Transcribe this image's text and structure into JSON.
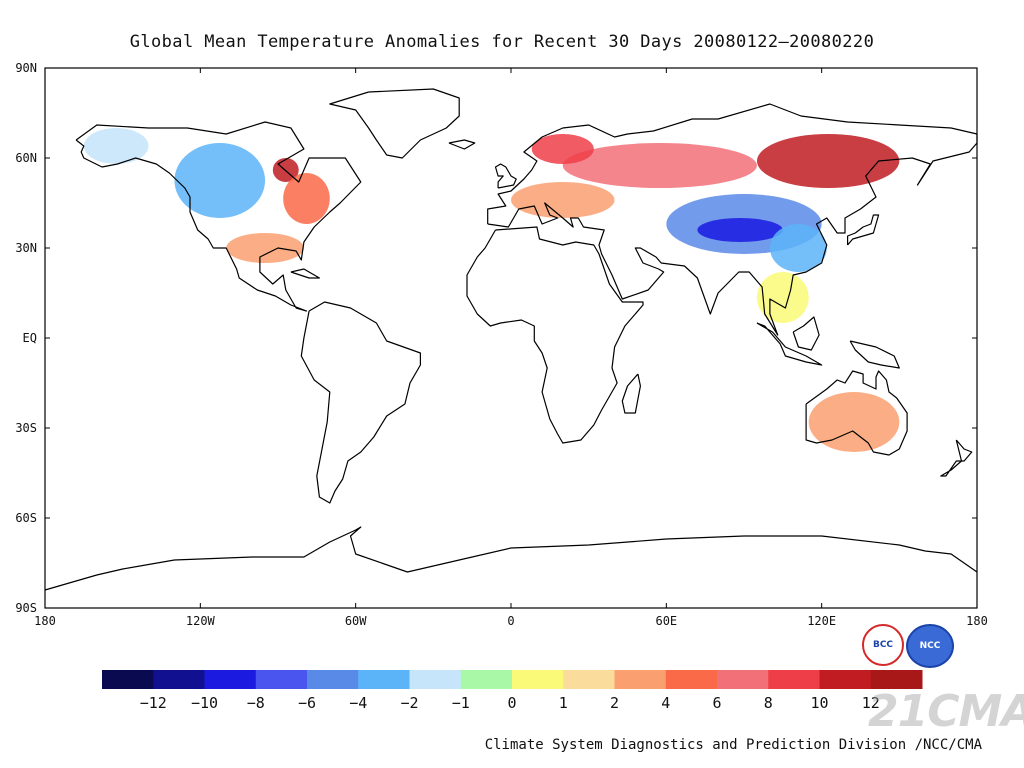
{
  "title": "Global Mean Temperature Anomalies for Recent 30 Days  20080122–20080220",
  "credit": "Climate System Diagnostics and Prediction Division /NCC/CMA",
  "watermark": "21CMA",
  "logos": {
    "bcc": "BCC",
    "ncc": "NCC"
  },
  "map": {
    "lon_range": [
      -180,
      180
    ],
    "lat_range": [
      -90,
      90
    ],
    "lat_ticks": [
      {
        "value": 90,
        "label": "90N"
      },
      {
        "value": 60,
        "label": "60N"
      },
      {
        "value": 30,
        "label": "30N"
      },
      {
        "value": 0,
        "label": "EQ"
      },
      {
        "value": -30,
        "label": "30S"
      },
      {
        "value": -60,
        "label": "60S"
      },
      {
        "value": -90,
        "label": "90S"
      }
    ],
    "lon_ticks": [
      {
        "value": -180,
        "label": "180"
      },
      {
        "value": -120,
        "label": "120W"
      },
      {
        "value": -60,
        "label": "60W"
      },
      {
        "value": 0,
        "label": "0"
      },
      {
        "value": 60,
        "label": "60E"
      },
      {
        "value": 120,
        "label": "120E"
      },
      {
        "value": 180,
        "label": "180"
      }
    ]
  },
  "legend": {
    "colors": [
      "#0a0a50",
      "#101090",
      "#1a1ae0",
      "#4a55f0",
      "#5a8ae8",
      "#5cb4f8",
      "#c6e4fa",
      "#a8f8a8",
      "#fafa78",
      "#fadc9c",
      "#faa070",
      "#fa6a48",
      "#f27078",
      "#ee3e48",
      "#c01c22",
      "#a81818"
    ],
    "labels": [
      "-12",
      "-10",
      "-8",
      "-6",
      "-4",
      "-2",
      "-1",
      "0",
      "1",
      "2",
      "4",
      "6",
      "8",
      "10",
      "12"
    ]
  },
  "anomaly_regions": [
    {
      "name": "siberia-warm",
      "value": 10,
      "lon": [
        95,
        150
      ],
      "lat": [
        50,
        68
      ]
    },
    {
      "name": "russia-warm",
      "value": 6,
      "lon": [
        20,
        95
      ],
      "lat": [
        50,
        65
      ]
    },
    {
      "name": "scandinavia-warm",
      "value": 8,
      "lon": [
        8,
        32
      ],
      "lat": [
        58,
        68
      ]
    },
    {
      "name": "europe-mild",
      "value": 2,
      "lon": [
        0,
        40
      ],
      "lat": [
        40,
        52
      ]
    },
    {
      "name": "central-asia-cold",
      "value": -6,
      "lon": [
        60,
        120
      ],
      "lat": [
        28,
        48
      ]
    },
    {
      "name": "tibet-cold",
      "value": -10,
      "lon": [
        72,
        105
      ],
      "lat": [
        32,
        40
      ]
    },
    {
      "name": "east-china-cold",
      "value": -4,
      "lon": [
        100,
        122
      ],
      "lat": [
        22,
        38
      ]
    },
    {
      "name": "canada-cold",
      "value": -4,
      "lon": [
        -130,
        -95
      ],
      "lat": [
        40,
        65
      ]
    },
    {
      "name": "alaska-cold",
      "value": -2,
      "lon": [
        -165,
        -140
      ],
      "lat": [
        58,
        70
      ]
    },
    {
      "name": "hudson-warm",
      "value": 10,
      "lon": [
        -92,
        -82
      ],
      "lat": [
        52,
        60
      ]
    },
    {
      "name": "eastern-us-warm",
      "value": 4,
      "lon": [
        -88,
        -70
      ],
      "lat": [
        38,
        55
      ]
    },
    {
      "name": "southern-us-warm",
      "value": 2,
      "lon": [
        -110,
        -80
      ],
      "lat": [
        25,
        35
      ]
    },
    {
      "name": "australia-warm",
      "value": 2,
      "lon": [
        115,
        150
      ],
      "lat": [
        -38,
        -18
      ]
    },
    {
      "name": "southeast-asia-mild",
      "value": 0,
      "lon": [
        95,
        115
      ],
      "lat": [
        5,
        22
      ]
    }
  ]
}
